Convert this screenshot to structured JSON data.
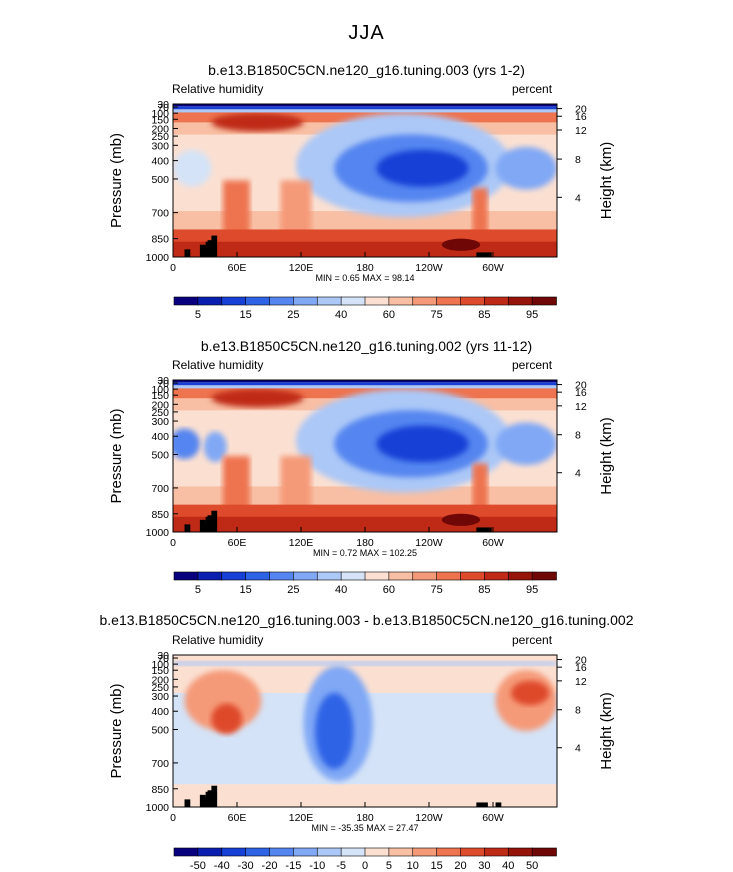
{
  "figure_title": "JJA",
  "chart_data": [
    {
      "type": "heatmap",
      "title": "b.e13.B1850C5CN.ne120_g16.tuning.003 (yrs 1-2)",
      "left_label": "Relative humidity",
      "right_label": "percent",
      "ylabel": "Pressure (mb)",
      "y2label": "Height (km)",
      "x_ticks": [
        "0",
        "60E",
        "120E",
        "180",
        "120W",
        "60W"
      ],
      "y_ticks": [
        "30",
        "70",
        "100",
        "150",
        "200",
        "250",
        "300",
        "400",
        "500",
        "700",
        "850",
        "1000"
      ],
      "y2_ticks": [
        "20",
        "16",
        "12",
        "8",
        "4"
      ],
      "stats": "MIN =    0.65   MAX =   98.14",
      "colorbar_labels": [
        "5",
        "15",
        "25",
        "40",
        "60",
        "75",
        "85",
        "95"
      ]
    },
    {
      "type": "heatmap",
      "title": "b.e13.B1850C5CN.ne120_g16.tuning.002 (yrs 11-12)",
      "left_label": "Relative humidity",
      "right_label": "percent",
      "ylabel": "Pressure (mb)",
      "y2label": "Height (km)",
      "x_ticks": [
        "0",
        "60E",
        "120E",
        "180",
        "120W",
        "60W"
      ],
      "y_ticks": [
        "30",
        "70",
        "100",
        "150",
        "200",
        "250",
        "300",
        "400",
        "500",
        "700",
        "850",
        "1000"
      ],
      "y2_ticks": [
        "20",
        "16",
        "12",
        "8",
        "4"
      ],
      "stats": "MIN =    0.72   MAX =  102.25",
      "colorbar_labels": [
        "5",
        "15",
        "25",
        "40",
        "60",
        "75",
        "85",
        "95"
      ]
    },
    {
      "type": "heatmap",
      "title": "b.e13.B1850C5CN.ne120_g16.tuning.003 - b.e13.B1850C5CN.ne120_g16.tuning.002",
      "left_label": "Relative humidity",
      "right_label": "percent",
      "ylabel": "Pressure (mb)",
      "y2label": "Height (km)",
      "x_ticks": [
        "0",
        "60E",
        "120E",
        "180",
        "120W",
        "60W"
      ],
      "y_ticks": [
        "30",
        "70",
        "100",
        "150",
        "200",
        "250",
        "300",
        "400",
        "500",
        "700",
        "850",
        "1000"
      ],
      "y2_ticks": [
        "20",
        "16",
        "12",
        "8",
        "4"
      ],
      "stats": "MIN =  -35.35   MAX =   27.47",
      "colorbar_labels": [
        "-50",
        "-40",
        "-30",
        "-20",
        "-15",
        "-10",
        "-5",
        "0",
        "5",
        "10",
        "15",
        "20",
        "30",
        "40",
        "50"
      ]
    }
  ],
  "colors": {
    "rh_scale": [
      "#08007f",
      "#0a1fb0",
      "#1640d6",
      "#2e63e6",
      "#5585f0",
      "#80a8f5",
      "#acc8f7",
      "#d4e3f7",
      "#fbe0d2",
      "#f8bfa4",
      "#f59a78",
      "#ee734f",
      "#de4a2c",
      "#bf2a17",
      "#951309",
      "#6e0705"
    ],
    "diff_scale": [
      "#08007f",
      "#0a1fb0",
      "#1640d6",
      "#2e63e6",
      "#5585f0",
      "#80a8f5",
      "#acc8f7",
      "#d4e3f7",
      "#fbe0d2",
      "#f8bfa4",
      "#f59a78",
      "#ee734f",
      "#de4a2c",
      "#bf2a17",
      "#951309",
      "#6e0705"
    ]
  }
}
